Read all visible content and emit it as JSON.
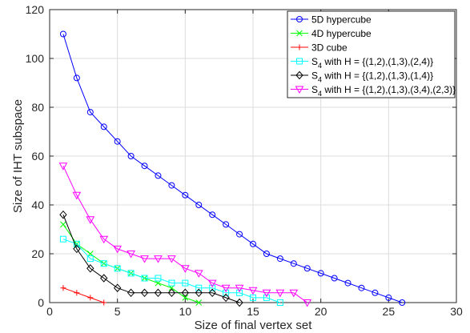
{
  "chart_data": {
    "type": "line",
    "xlabel": "Size of final vertex set",
    "ylabel": "Size of IHT subspace",
    "xlim": [
      0,
      30
    ],
    "ylim": [
      0,
      120
    ],
    "xticks": [
      0,
      5,
      10,
      15,
      20,
      25,
      30
    ],
    "yticks": [
      0,
      20,
      40,
      60,
      80,
      100,
      120
    ],
    "grid": true,
    "legend_position": "top-right",
    "series": [
      {
        "name": "5D hypercube",
        "color": "#0000ff",
        "marker": "circle",
        "x": [
          1,
          2,
          3,
          4,
          5,
          6,
          7,
          8,
          9,
          10,
          11,
          12,
          13,
          14,
          15,
          16,
          17,
          18,
          19,
          20,
          21,
          22,
          23,
          24,
          25,
          26
        ],
        "y": [
          110,
          92,
          78,
          72,
          66,
          60,
          56,
          52,
          48,
          44,
          40,
          36,
          32,
          28,
          24,
          20,
          18,
          16,
          14,
          12,
          10,
          8,
          6,
          4,
          2,
          0
        ]
      },
      {
        "name": "4D hypercube",
        "color": "#00ff00",
        "marker": "x",
        "x": [
          1,
          2,
          3,
          4,
          5,
          6,
          7,
          8,
          9,
          10,
          11
        ],
        "y": [
          32,
          24,
          20,
          16,
          14,
          12,
          10,
          8,
          6,
          2,
          0
        ]
      },
      {
        "name": "3D cube",
        "color": "#ff0000",
        "marker": "plus",
        "x": [
          1,
          2,
          3,
          4
        ],
        "y": [
          6,
          4,
          2,
          0
        ]
      },
      {
        "name_main": "S",
        "name_sub": "4",
        "name_rest": " with H = {(1,2),(1,3),(2,4)}",
        "color": "#00ffff",
        "marker": "square",
        "x": [
          1,
          2,
          3,
          4,
          5,
          6,
          7,
          8,
          9,
          10,
          11,
          12,
          13,
          14,
          15,
          16,
          17
        ],
        "y": [
          26,
          24,
          18,
          16,
          14,
          12,
          10,
          10,
          8,
          8,
          6,
          6,
          4,
          4,
          2,
          2,
          0
        ]
      },
      {
        "name_main": "S",
        "name_sub": "4",
        "name_rest": " with H = {(1,2),(1,3),(1,4)}",
        "color": "#000000",
        "marker": "diamond",
        "x": [
          1,
          2,
          3,
          4,
          5,
          6,
          7,
          8,
          9,
          10,
          11,
          12,
          13,
          14
        ],
        "y": [
          36,
          22,
          14,
          10,
          6,
          4,
          4,
          4,
          4,
          4,
          4,
          4,
          2,
          0
        ]
      },
      {
        "name_main": "S",
        "name_sub": "4",
        "name_rest": " with H = {(1,2),(1,3),(3,4),(2,3)}",
        "color": "#ff00ff",
        "marker": "triangle-down",
        "x": [
          1,
          2,
          3,
          4,
          5,
          6,
          7,
          8,
          9,
          10,
          11,
          12,
          13,
          14,
          15,
          16,
          17,
          18,
          19
        ],
        "y": [
          56,
          44,
          34,
          26,
          22,
          20,
          18,
          18,
          18,
          14,
          12,
          8,
          6,
          6,
          5,
          4,
          4,
          4,
          0
        ]
      }
    ]
  }
}
